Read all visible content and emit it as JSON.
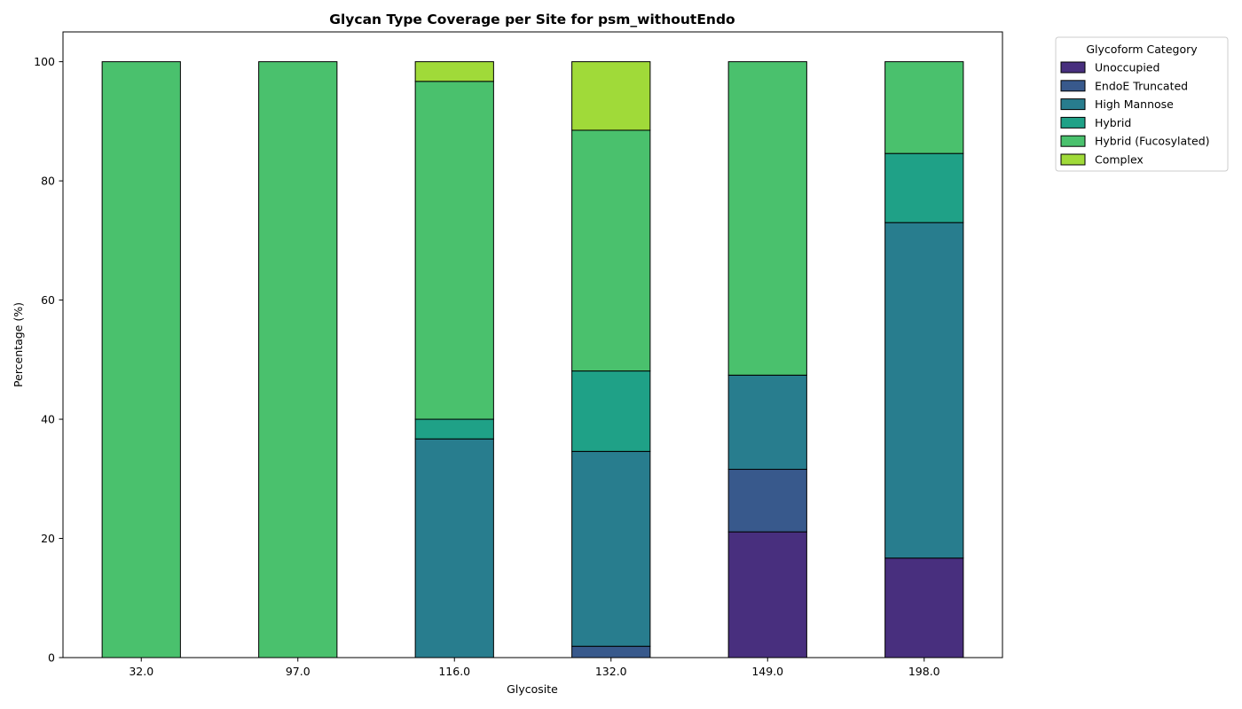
{
  "chart_data": {
    "type": "bar",
    "stacked": true,
    "title": "Glycan Type Coverage per Site for psm_withoutEndo",
    "xlabel": "Glycosite",
    "ylabel": "Percentage (%)",
    "ylim": [
      0,
      105
    ],
    "yticks": [
      0,
      20,
      40,
      60,
      80,
      100
    ],
    "categories": [
      "32.0",
      "97.0",
      "116.0",
      "132.0",
      "149.0",
      "198.0"
    ],
    "grid": false,
    "legend": {
      "title": "Glycoform Category",
      "placement": "outside-top-right"
    },
    "series": [
      {
        "name": "Unoccupied",
        "color": "#482f7e",
        "values": [
          0,
          0,
          0,
          0,
          21.1,
          16.7
        ]
      },
      {
        "name": "EndoE Truncated",
        "color": "#38598c",
        "values": [
          0,
          0,
          0,
          1.9,
          10.5,
          0
        ]
      },
      {
        "name": "High Mannose",
        "color": "#287d8e",
        "values": [
          0,
          0,
          36.7,
          32.7,
          15.8,
          56.3
        ]
      },
      {
        "name": "Hybrid",
        "color": "#1fa187",
        "values": [
          0,
          0,
          3.3,
          13.5,
          0,
          11.6
        ]
      },
      {
        "name": "Hybrid (Fucosylated)",
        "color": "#4ac16d",
        "values": [
          100,
          100,
          56.7,
          40.4,
          52.6,
          15.4
        ]
      },
      {
        "name": "Complex",
        "color": "#a0da39",
        "values": [
          0,
          0,
          3.3,
          11.5,
          0,
          0
        ]
      }
    ]
  }
}
